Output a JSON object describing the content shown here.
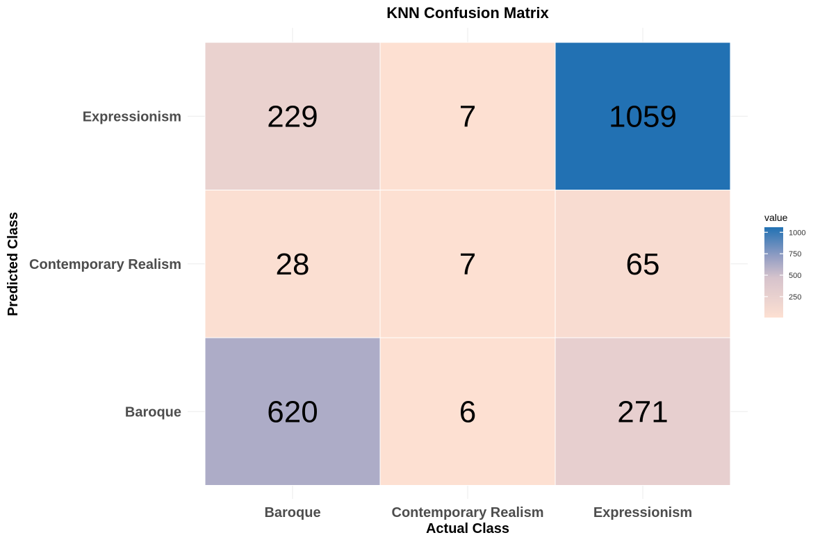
{
  "chart_data": {
    "type": "heatmap",
    "title": "KNN Confusion Matrix",
    "xlabel": "Actual Class",
    "ylabel": "Predicted Class",
    "x_categories": [
      "Baroque",
      "Contemporary Realism",
      "Expressionism"
    ],
    "y_categories": [
      "Baroque",
      "Contemporary Realism",
      "Expressionism"
    ],
    "cells": [
      {
        "actual": "Baroque",
        "predicted": "Expressionism",
        "value": 229
      },
      {
        "actual": "Contemporary Realism",
        "predicted": "Expressionism",
        "value": 7
      },
      {
        "actual": "Expressionism",
        "predicted": "Expressionism",
        "value": 1059
      },
      {
        "actual": "Baroque",
        "predicted": "Contemporary Realism",
        "value": 28
      },
      {
        "actual": "Contemporary Realism",
        "predicted": "Contemporary Realism",
        "value": 7
      },
      {
        "actual": "Expressionism",
        "predicted": "Contemporary Realism",
        "value": 65
      },
      {
        "actual": "Baroque",
        "predicted": "Baroque",
        "value": 620
      },
      {
        "actual": "Contemporary Realism",
        "predicted": "Baroque",
        "value": 6
      },
      {
        "actual": "Expressionism",
        "predicted": "Baroque",
        "value": 271
      }
    ],
    "legend": {
      "title": "value",
      "ticks": [
        250,
        500,
        750,
        1000
      ],
      "range": [
        6,
        1059
      ],
      "placement": "right"
    },
    "colors": {
      "low": "#fde0d2",
      "mid": "#d6c3cc",
      "mid_blue": "#929dc3",
      "high": "#2271b3",
      "grid": "#ebebeb",
      "cell_border": "#ffffff"
    },
    "grid": true
  }
}
